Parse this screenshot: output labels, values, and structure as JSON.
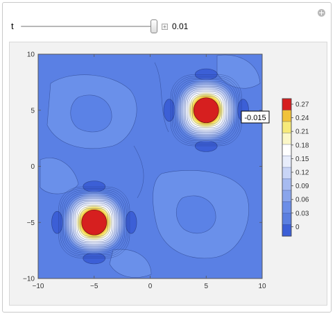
{
  "controls": {
    "parameter_label": "t",
    "parameter_value": "0.01",
    "slider_position": 0.98
  },
  "tooltip": {
    "value": "-0.015"
  },
  "colors": {
    "background_low": "#3f62d8",
    "field": "#5b82e6",
    "field_light": "#6a90ea",
    "peak_core": "#d61f1f",
    "contour_line": "#1c2e6b"
  },
  "chart_data": {
    "type": "contour",
    "title": "",
    "xlabel": "",
    "ylabel": "",
    "xlim": [
      -10,
      10
    ],
    "ylim": [
      -10,
      10
    ],
    "x_ticks": [
      -10,
      -5,
      0,
      5,
      10
    ],
    "y_ticks": [
      -10,
      -5,
      0,
      5,
      10
    ],
    "peaks": [
      {
        "x": 5,
        "y": 5,
        "value": 0.27
      },
      {
        "x": -5,
        "y": -5,
        "value": 0.27
      }
    ],
    "troughs": [
      {
        "x": 5,
        "y": 8.2
      },
      {
        "x": 5,
        "y": 1.8
      },
      {
        "x": 1.7,
        "y": 5
      },
      {
        "x": 8.3,
        "y": 5
      },
      {
        "x": -5,
        "y": -1.8
      },
      {
        "x": -5,
        "y": -8.2
      },
      {
        "x": -8.3,
        "y": -5
      },
      {
        "x": -1.7,
        "y": -5
      }
    ],
    "legend": {
      "placement": "right",
      "labels": [
        "0.27",
        "0.24",
        "0.21",
        "0.18",
        "0.15",
        "0.12",
        "0.09",
        "0.06",
        "0.03",
        "0"
      ],
      "colors": [
        "#d61f1f",
        "#f1c23a",
        "#f7ea7a",
        "#fbf7c8",
        "#ffffff",
        "#e8edfb",
        "#c9d5f6",
        "#a7bbf0",
        "#8aa5eb",
        "#6c8ee7",
        "#5b7fe0",
        "#3c5fd6"
      ]
    },
    "grid": false
  }
}
